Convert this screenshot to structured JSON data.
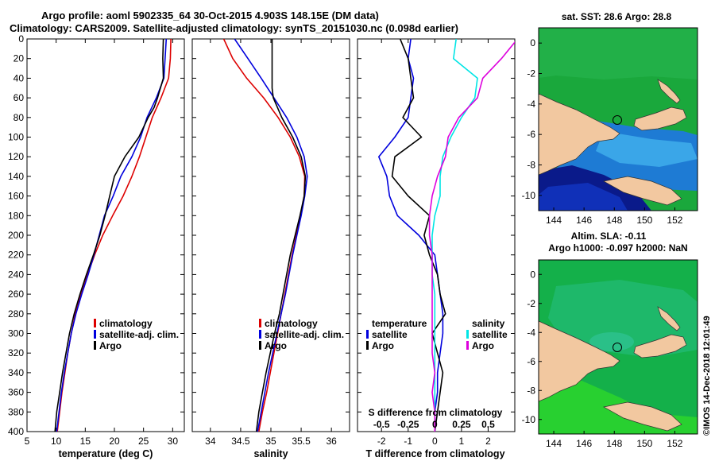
{
  "title": {
    "line1": "Argo profile: aoml 5902335_64 30-Oct-2015 4.903S 148.15E (DM data)",
    "line2": "Climatology: CARS2009. Satellite-adjusted climatology: synTS_20151030.nc (0.098d earlier)"
  },
  "credit": "©IMOS 14-Dec-2018 12:01:49",
  "colors": {
    "red": "#dd0000",
    "blue": "#0000dd",
    "black": "#000000",
    "cyan": "#00e5e5",
    "magenta": "#dd00dd",
    "land": "#f2c8a0"
  },
  "chart_data": [
    {
      "type": "line",
      "xlabel": "temperature (deg C)",
      "ylabel": "",
      "xlim": [
        5,
        32
      ],
      "ylim": [
        400,
        0
      ],
      "xticks": [
        "5",
        "10",
        "15",
        "20",
        "25",
        "30"
      ],
      "yticks": [
        "0",
        "20",
        "40",
        "60",
        "80",
        "100",
        "120",
        "140",
        "160",
        "180",
        "200",
        "220",
        "240",
        "260",
        "280",
        "300",
        "320",
        "340",
        "360",
        "380",
        "400"
      ],
      "legend": [
        "climatology",
        "satellite-adj. clim.",
        "Argo"
      ],
      "series": [
        {
          "name": "climatology",
          "color": "red",
          "depth": [
            0,
            20,
            40,
            60,
            80,
            100,
            120,
            140,
            160,
            180,
            200,
            220,
            240,
            260,
            280,
            300,
            320,
            340,
            360,
            380,
            400
          ],
          "values": [
            29.7,
            29.6,
            29.3,
            28.0,
            26.5,
            25.4,
            24.3,
            23.0,
            21.5,
            19.7,
            18.0,
            16.6,
            15.4,
            14.3,
            13.3,
            12.6,
            12.0,
            11.5,
            11.0,
            10.6,
            10.2
          ]
        },
        {
          "name": "satellite-adj. clim.",
          "color": "blue",
          "depth": [
            0,
            20,
            40,
            60,
            80,
            100,
            120,
            140,
            160,
            180,
            200,
            220,
            240,
            260,
            280,
            300,
            320,
            340,
            360,
            380,
            400
          ],
          "values": [
            28.9,
            28.7,
            28.5,
            27.2,
            25.6,
            24.5,
            23.0,
            21.1,
            19.8,
            18.3,
            17.4,
            16.5,
            15.5,
            14.4,
            13.4,
            12.6,
            12.0,
            11.4,
            10.9,
            10.5,
            10.1
          ]
        },
        {
          "name": "Argo",
          "color": "black",
          "depth": [
            0,
            20,
            40,
            60,
            70,
            80,
            100,
            120,
            140,
            160,
            180,
            200,
            220,
            240,
            260,
            280,
            300,
            320,
            340,
            360,
            380,
            400
          ],
          "values": [
            28.4,
            28.3,
            28.4,
            27.4,
            26.8,
            25.8,
            24.2,
            21.8,
            20.0,
            19.2,
            18.4,
            17.5,
            16.4,
            15.2,
            14.1,
            13.1,
            12.3,
            11.7,
            11.1,
            10.6,
            10.1,
            9.8
          ]
        }
      ]
    },
    {
      "type": "line",
      "xlabel": "salinity",
      "ylabel": "",
      "xlim": [
        33.7,
        36.3
      ],
      "ylim": [
        400,
        0
      ],
      "xticks": [
        "34",
        "34.5",
        "35",
        "35.5",
        "36"
      ],
      "legend": [
        "climatology",
        "satellite-adj. clim.",
        "Argo"
      ],
      "series": [
        {
          "name": "climatology",
          "color": "red",
          "depth": [
            0,
            20,
            40,
            60,
            80,
            100,
            120,
            140,
            160,
            180,
            200,
            220,
            240,
            260,
            280,
            300,
            320,
            340,
            360,
            380,
            400
          ],
          "values": [
            34.22,
            34.37,
            34.6,
            34.88,
            35.12,
            35.32,
            35.47,
            35.56,
            35.55,
            35.49,
            35.42,
            35.35,
            35.29,
            35.23,
            35.17,
            35.11,
            35.05,
            34.99,
            34.93,
            34.86,
            34.8
          ]
        },
        {
          "name": "satellite-adj. clim.",
          "color": "blue",
          "depth": [
            0,
            20,
            40,
            60,
            80,
            100,
            120,
            140,
            160,
            180,
            200,
            220,
            240,
            260,
            280,
            300,
            320,
            340,
            360,
            380,
            400
          ],
          "values": [
            34.4,
            34.62,
            34.84,
            35.05,
            35.26,
            35.43,
            35.55,
            35.6,
            35.56,
            35.5,
            35.43,
            35.36,
            35.3,
            35.24,
            35.17,
            35.1,
            35.03,
            34.96,
            34.9,
            34.84,
            34.78
          ]
        },
        {
          "name": "Argo",
          "color": "black",
          "depth": [
            0,
            20,
            40,
            50,
            60,
            80,
            100,
            120,
            140,
            160,
            180,
            200,
            220,
            240,
            260,
            280,
            300,
            320,
            340,
            360,
            380,
            400
          ],
          "values": [
            35.02,
            35.02,
            35.02,
            35.02,
            35.04,
            35.18,
            35.36,
            35.5,
            35.57,
            35.55,
            35.48,
            35.4,
            35.32,
            35.26,
            35.2,
            35.14,
            35.06,
            34.99,
            34.92,
            34.86,
            34.8,
            34.76
          ]
        }
      ]
    },
    {
      "type": "line",
      "xlabel": "T difference from climatology",
      "xlabel2": "S difference from climatology",
      "xlim": [
        -2.9,
        3.0
      ],
      "ylim": [
        400,
        0
      ],
      "xticks": [
        "-2",
        "-1",
        "0",
        "1",
        "2"
      ],
      "xticks2": [
        "-0.5",
        "-0.25",
        "0",
        "0.25",
        "0.5"
      ],
      "legend_temperature": {
        "title": "temperature",
        "items": [
          "satellite",
          "Argo"
        ]
      },
      "legend_salinity": {
        "title": "salinity",
        "items": [
          "satellite",
          "Argo"
        ]
      },
      "series": [
        {
          "name": "temperature satellite",
          "color": "blue",
          "depth": [
            0,
            20,
            40,
            60,
            80,
            100,
            120,
            140,
            160,
            180,
            200,
            220,
            240,
            260,
            280,
            300,
            320,
            340,
            360,
            380,
            400
          ],
          "values": [
            -0.9,
            -1.0,
            -0.8,
            -0.9,
            -1.0,
            -1.5,
            -2.1,
            -1.8,
            -1.7,
            -1.4,
            -0.6,
            0.0,
            0.1,
            0.2,
            0.3,
            0.3,
            0.2,
            0.1,
            0.1,
            0.0,
            0.0
          ]
        },
        {
          "name": "temperature Argo",
          "color": "black",
          "depth": [
            0,
            20,
            40,
            60,
            80,
            100,
            120,
            140,
            160,
            180,
            200,
            220,
            240,
            260,
            280,
            300,
            320,
            340,
            360,
            380,
            400
          ],
          "values": [
            -1.3,
            -1.0,
            -0.9,
            -0.8,
            -1.2,
            -0.5,
            -1.5,
            -1.6,
            -1.0,
            -0.2,
            -0.4,
            -0.2,
            0.1,
            0.2,
            0.4,
            -0.1,
            0.1,
            0.3,
            0.2,
            0.1,
            0.0
          ]
        },
        {
          "name": "salinity satellite",
          "color": "cyan",
          "depth": [
            0,
            20,
            40,
            60,
            80,
            100,
            120,
            140,
            160,
            180,
            200,
            220,
            240,
            260,
            280,
            300,
            320,
            340,
            360,
            380,
            400
          ],
          "values": [
            0.8,
            0.7,
            1.6,
            1.5,
            1.0,
            0.6,
            0.3,
            0.2,
            0.2,
            0.0,
            -0.1,
            -0.1,
            -0.1,
            0.0,
            0.0,
            0.0,
            0.0,
            0.0,
            0.0,
            0.0,
            0.0
          ]
        },
        {
          "name": "salinity Argo",
          "color": "magenta",
          "depth": [
            0,
            20,
            40,
            60,
            80,
            100,
            120,
            140,
            160,
            180,
            200,
            220,
            240,
            260,
            280,
            300,
            320,
            340,
            360,
            380,
            400
          ],
          "values": [
            3.1,
            2.5,
            1.8,
            1.6,
            0.9,
            0.5,
            0.4,
            0.1,
            -0.1,
            -0.2,
            -0.2,
            -0.1,
            -0.1,
            -0.1,
            -0.1,
            -0.1,
            -0.1,
            0.0,
            -0.1,
            0.0,
            0.0
          ]
        }
      ]
    },
    {
      "type": "heatmap",
      "title": "sat. SST: 28.6 Argo: 28.8",
      "xlim": [
        143,
        153.5
      ],
      "ylim": [
        -11,
        1
      ],
      "xticks": [
        "144",
        "146",
        "148",
        "150",
        "152"
      ],
      "yticks": [
        "0",
        "-2",
        "-4",
        "-6",
        "-8",
        "-10"
      ],
      "marker": {
        "lon": 148.15,
        "lat": -4.903
      }
    },
    {
      "type": "heatmap",
      "title": "Altim. SLA: -0.11",
      "subtitle": "Argo h1000: -0.097 h2000: NaN",
      "xlim": [
        143,
        153.5
      ],
      "ylim": [
        -11,
        1
      ],
      "xticks": [
        "144",
        "146",
        "148",
        "150",
        "152"
      ],
      "yticks": [
        "0",
        "-2",
        "-4",
        "-6",
        "-8",
        "-10"
      ],
      "marker": {
        "lon": 148.15,
        "lat": -4.903
      }
    }
  ]
}
